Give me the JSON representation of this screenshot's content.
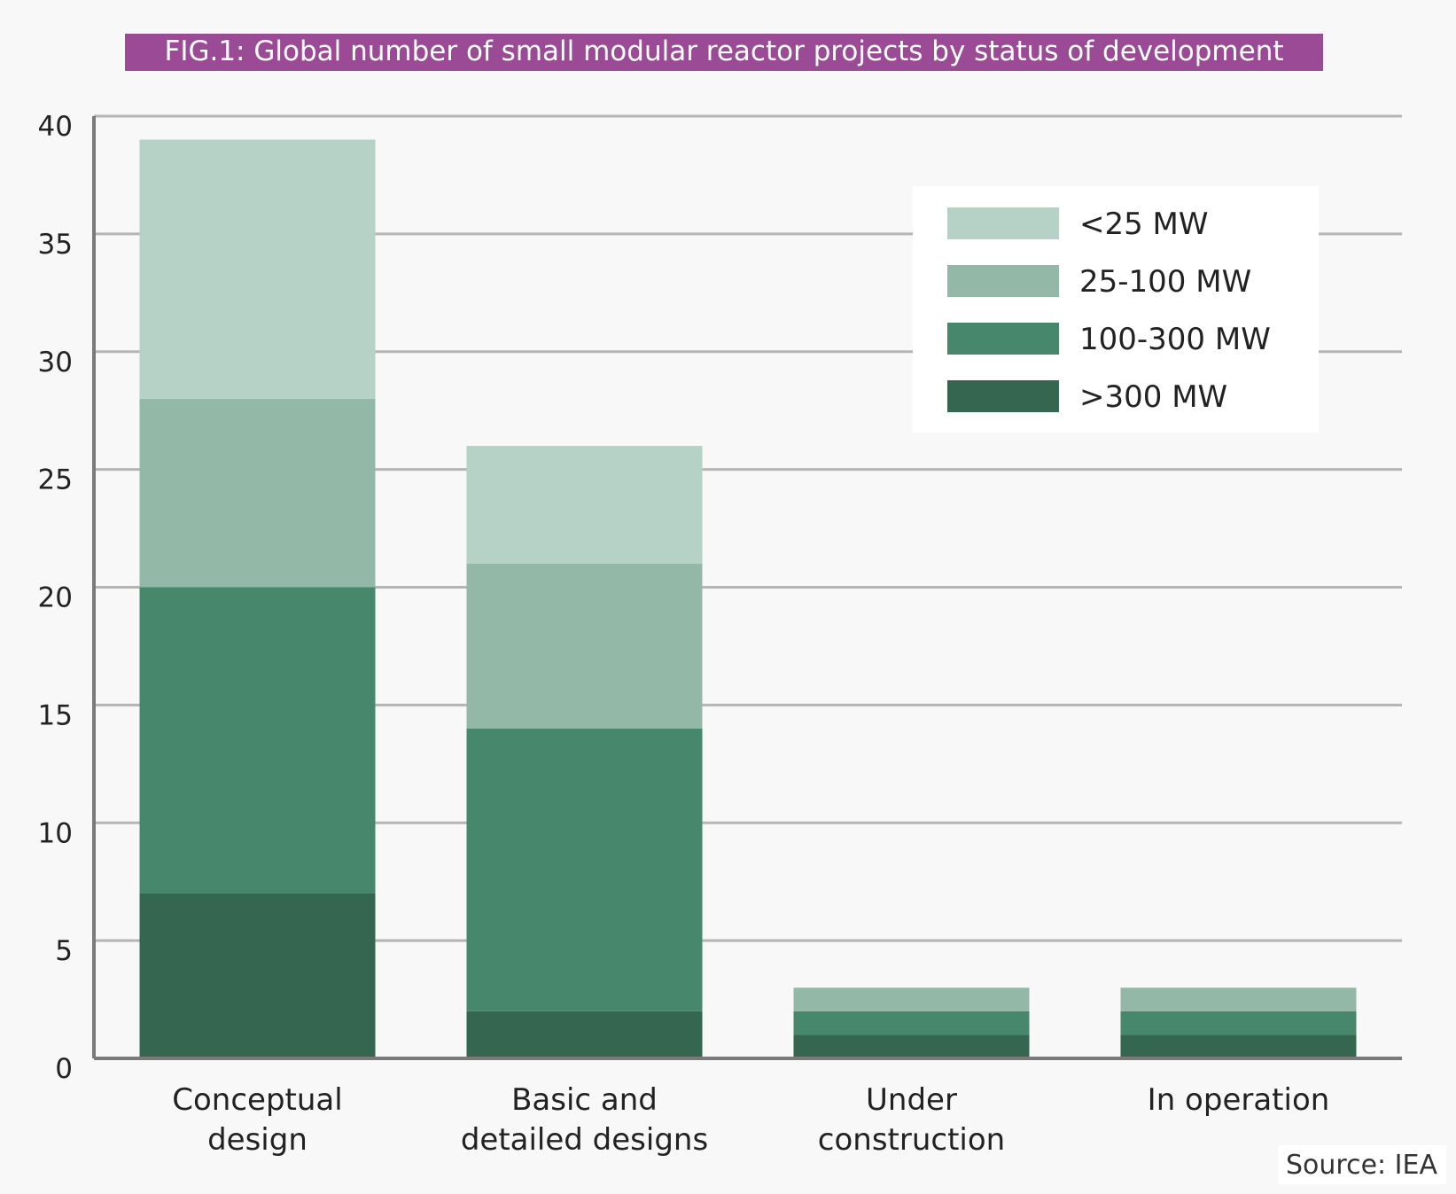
{
  "title": "FIG.1: Global number of small modular reactor projects by status of development",
  "source": "Source: IEA",
  "chart_data": {
    "type": "bar",
    "stacked": true,
    "title": "FIG.1: Global number of small modular reactor projects by status of development",
    "xlabel": "",
    "ylabel": "",
    "ylim": [
      0,
      40
    ],
    "yticks": [
      0,
      5,
      10,
      15,
      20,
      25,
      30,
      35,
      40
    ],
    "grid": true,
    "legend_position": "top-right",
    "categories": [
      [
        "Conceptual",
        "design"
      ],
      [
        "Basic and",
        "detailed designs"
      ],
      [
        "Under",
        "construction"
      ],
      [
        "In operation"
      ]
    ],
    "series": [
      {
        "name": ">300 MW",
        "color": "#346650",
        "values": [
          7,
          2,
          1,
          1
        ]
      },
      {
        "name": "100-300 MW",
        "color": "#47876c",
        "values": [
          13,
          12,
          1,
          1
        ]
      },
      {
        "name": "25-100 MW",
        "color": "#93b8a7",
        "values": [
          8,
          7,
          1,
          1
        ]
      },
      {
        "name": "<25 MW",
        "color": "#b6d1c5",
        "values": [
          11,
          5,
          0,
          0
        ]
      }
    ],
    "legend_order": [
      "<25 MW",
      "25-100 MW",
      "100-300 MW",
      ">300 MW"
    ]
  }
}
